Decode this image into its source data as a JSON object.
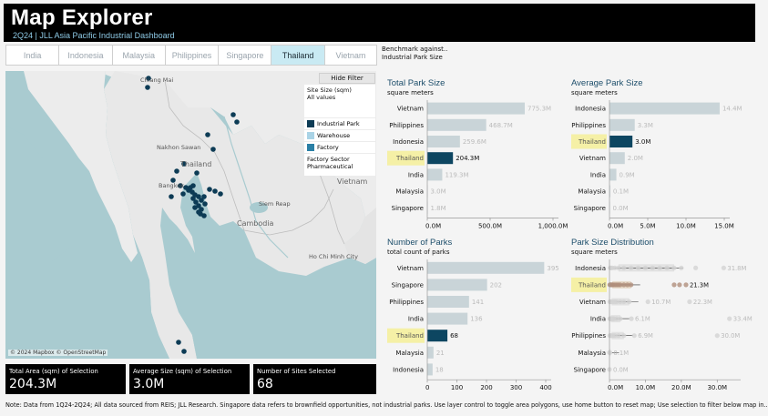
{
  "header": {
    "title": "Map Explorer",
    "subtitle": "2Q24 | JLL Asia Pacific Industrial Dashboard"
  },
  "tabs": [
    {
      "label": "India",
      "active": false
    },
    {
      "label": "Indonesia",
      "active": false
    },
    {
      "label": "Malaysia",
      "active": false
    },
    {
      "label": "Philippines",
      "active": false
    },
    {
      "label": "Singapore",
      "active": false
    },
    {
      "label": "Thailand",
      "active": true
    },
    {
      "label": "Vietnam",
      "active": false
    }
  ],
  "benchmark": {
    "line1": "Benchmark against..",
    "line2": "Industrial Park Size"
  },
  "map": {
    "hide_filter": "Hide Filter",
    "site_size_label": "Site Size (sqm)",
    "site_size_value": "All values",
    "legend": [
      {
        "label": "Industrial Park",
        "color": "#0c3b55"
      },
      {
        "label": "Warehouse",
        "color": "#a9d3e6"
      },
      {
        "label": "Factory",
        "color": "#2a7fa5"
      }
    ],
    "sector_label": "Factory Sector",
    "sector_value": "Pharmaceutical",
    "attribution": "© 2024 Mapbox © OpenStreetMap",
    "places": {
      "chiang_mai": "Chiang Mai",
      "nakhon_sawan": "Nakhon Sawan",
      "thailand": "Thailand",
      "bangkok": "Bangkok",
      "siem_reap": "Siem Reap",
      "cambodia": "Cambodia",
      "vietnam": "Vietnam",
      "ho_chi_minh": "Ho Chi Minh City"
    }
  },
  "kpis": [
    {
      "label": "Total Area (sqm) of Selection",
      "value": "204.3M"
    },
    {
      "label": "Average Size (sqm) of Selection",
      "value": "3.0M"
    },
    {
      "label": "Number of Sites Selected",
      "value": "68"
    }
  ],
  "note": "Note: Data from 1Q24-2Q24; All data sourced from REIS; JLL Research. Singapore data refers to brownfield opportunities, not industrial parks. Use layer control to toggle area polygons, use home button to reset map; Use selection to filter below map in..",
  "colors": {
    "highlight_bar": "#0d4661",
    "other_bar": "#c9d4d8",
    "highlight_label_bg": "#f5f0a6",
    "title": "#1d4e6b"
  },
  "chart_data": [
    {
      "type": "bar",
      "title": "Total Park Size",
      "subtitle": "square meters",
      "categories": [
        "Vietnam",
        "Philippines",
        "Indonesia",
        "Thailand",
        "India",
        "Malaysia",
        "Singapore"
      ],
      "values": [
        775.3,
        468.7,
        259.6,
        204.3,
        119.3,
        3.0,
        1.8
      ],
      "value_labels": [
        "775.3M",
        "468.7M",
        "259.6M",
        "204.3M",
        "119.3M",
        "3.0M",
        "1.8M"
      ],
      "highlight": "Thailand",
      "ticks": [
        "0.0M",
        "500.0M",
        "1,000.0M"
      ],
      "tick_values": [
        0,
        500,
        1000
      ],
      "xlim": [
        0,
        1000
      ]
    },
    {
      "type": "bar",
      "title": "Average Park Size",
      "subtitle": "square meters",
      "categories": [
        "Indonesia",
        "Philippines",
        "Thailand",
        "Vietnam",
        "India",
        "Malaysia",
        "Singapore"
      ],
      "values": [
        14.4,
        3.3,
        3.0,
        2.0,
        0.9,
        0.1,
        0.0
      ],
      "value_labels": [
        "14.4M",
        "3.3M",
        "3.0M",
        "2.0M",
        "0.9M",
        "0.1M",
        "0.0M"
      ],
      "highlight": "Thailand",
      "ticks": [
        "0.0M",
        "5.0M",
        "10.0M",
        "15.0M"
      ],
      "tick_values": [
        0,
        5,
        10,
        15
      ],
      "xlim": [
        0,
        15
      ]
    },
    {
      "type": "bar",
      "title": "Number of Parks",
      "subtitle": "total count of parks",
      "categories": [
        "Vietnam",
        "Singapore",
        "Philippines",
        "India",
        "Thailand",
        "Malaysia",
        "Indonesia"
      ],
      "values": [
        395,
        202,
        141,
        136,
        68,
        21,
        18
      ],
      "value_labels": [
        "395",
        "202",
        "141",
        "136",
        "68",
        "21",
        "18"
      ],
      "highlight": "Thailand",
      "ticks": [
        "0",
        "100",
        "200",
        "300",
        "400"
      ],
      "tick_values": [
        0,
        100,
        200,
        300,
        400
      ],
      "xlim": [
        0,
        400
      ]
    },
    {
      "type": "scatter",
      "title": "Park Size Distribution",
      "subtitle": "square meters",
      "categories": [
        "Indonesia",
        "Thailand",
        "Vietnam",
        "India",
        "Philippines",
        "Malaysia",
        "Singapore"
      ],
      "highlight": "Thailand",
      "max_labels": [
        "31.8M",
        "21.3M",
        "22.3M",
        "33.4M",
        "30.0M",
        "",
        ""
      ],
      "mid_labels": [
        "",
        "",
        "10.7M",
        "6.1M",
        "6.9M",
        "0.1M",
        "0.0M"
      ],
      "max_values": [
        31.8,
        21.3,
        22.3,
        33.4,
        30.0,
        0.1,
        0.0
      ],
      "mid_values": [
        0,
        0,
        10.7,
        6.1,
        6.9,
        0.1,
        0.0
      ],
      "points": [
        [
          0.2,
          0.4,
          0.8,
          1.5,
          2.5,
          4,
          6,
          8,
          10,
          12,
          14,
          16,
          18,
          20,
          24,
          31.8
        ],
        [
          0.1,
          0.3,
          0.5,
          0.8,
          1.0,
          1.5,
          2.0,
          2.5,
          3.0,
          4.0,
          5.0,
          6.0,
          18,
          19.5,
          21.3
        ],
        [
          0.1,
          0.3,
          0.6,
          1.0,
          1.5,
          2.0,
          3.0,
          4.0,
          5.5,
          10.7,
          22.3
        ],
        [
          0.1,
          0.2,
          0.4,
          0.6,
          0.9,
          1.2,
          2.0,
          3.0,
          6.1,
          33.4
        ],
        [
          0.1,
          0.3,
          0.6,
          1.0,
          1.5,
          2.5,
          4.0,
          6.9,
          30.0
        ],
        [
          0.02,
          0.05,
          0.1
        ],
        [
          0.0
        ]
      ],
      "ticks": [
        "0.0M",
        "10.0M",
        "20.0M",
        "30.0M"
      ],
      "tick_values": [
        0,
        10,
        20,
        30
      ],
      "xlim": [
        0,
        35
      ]
    }
  ]
}
